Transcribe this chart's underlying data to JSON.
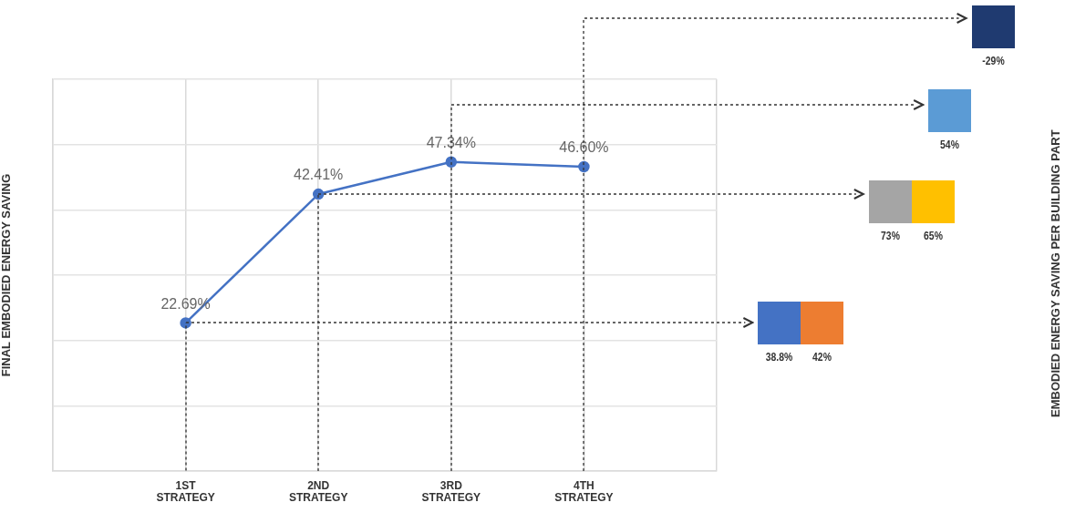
{
  "chart_data": [
    {
      "type": "line",
      "ylabel": "FINAL EMBODIED ENERGY SAVING",
      "x": [
        1,
        2,
        3,
        4
      ],
      "values": [
        22.69,
        42.41,
        47.34,
        46.6
      ],
      "value_labels": [
        "22.69%",
        "42.41%",
        "47.34%",
        "46.60%"
      ],
      "color": "#4472c4",
      "marker": "circle",
      "line_style": "solid",
      "xlim": [
        0,
        5
      ],
      "xticks": [
        {
          "value": 0,
          "label": null
        },
        {
          "value": 1,
          "label": "1ST STRATEGY"
        },
        {
          "value": 2,
          "label": "2ND STRATEGY"
        },
        {
          "value": 3,
          "label": "3RD STRATEGY"
        },
        {
          "value": 4,
          "label": "4TH STRATEGY"
        },
        {
          "value": 5,
          "label": null
        }
      ],
      "ylim": [
        0,
        60
      ],
      "yticks": [
        {
          "value": 0,
          "label": null
        },
        {
          "value": 10,
          "label": null
        },
        {
          "value": 20,
          "label": null
        },
        {
          "value": 30,
          "label": null
        },
        {
          "value": 40,
          "label": null
        },
        {
          "value": 50,
          "label": null
        },
        {
          "value": 60,
          "label": null
        }
      ],
      "tick_labels": "x",
      "grid": true,
      "legend": false
    },
    {
      "type": "other",
      "ylabel": "EMBODIED ENERGY SAVING PER BUILDING PART",
      "categories": [
        null,
        null,
        null,
        null,
        null,
        null
      ],
      "values": [
        -29,
        54,
        73,
        65,
        38.8,
        42
      ],
      "colors": [
        "#1f3a70",
        "#5b9bd5",
        "#a5a5a5",
        "#ffc000",
        "#4472c4",
        "#ed7d31"
      ],
      "value_labels": [
        "-29%",
        "54%",
        "73%",
        "65%",
        "38.8%",
        "42%"
      ]
    }
  ]
}
